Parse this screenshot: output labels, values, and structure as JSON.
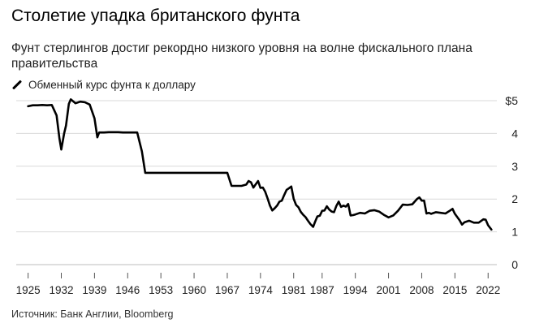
{
  "chart_data": {
    "type": "line",
    "title": "Столетие упадка британского фунта",
    "subtitle": "Фунт стерлингов достиг рекордно низкого уровня на волне фискального плана правительства",
    "legend": [
      "Обменный курс фунта к доллару"
    ],
    "source": "Источник: Банк Англии, Bloomberg",
    "xlabel": "",
    "ylabel": "",
    "ylim": [
      0,
      5
    ],
    "xlim": [
      1922.5,
      2023.5
    ],
    "yticks": [
      0,
      1,
      2,
      3,
      4,
      5
    ],
    "ytick_labels": [
      "0",
      "1",
      "2",
      "3",
      "4",
      "$5"
    ],
    "xticks": [
      1925,
      1932,
      1939,
      1946,
      1953,
      1960,
      1967,
      1974,
      1981,
      1987,
      1994,
      2001,
      2008,
      2015,
      2022
    ],
    "xtick_labels": [
      "1925",
      "1932",
      "1939",
      "1946",
      "1953",
      "1960",
      "1967",
      "1974",
      "1981",
      "1987",
      "1994",
      "2001",
      "2008",
      "2015",
      "2022"
    ],
    "grid": true,
    "series": [
      {
        "name": "Обменный курс фунта к доллару",
        "x": [
          1925.0,
          1926.0,
          1927.0,
          1928.0,
          1929.0,
          1930.0,
          1931.0,
          1931.6,
          1932.0,
          1932.6,
          1933.0,
          1933.6,
          1934.0,
          1935.0,
          1936.0,
          1937.0,
          1938.0,
          1939.0,
          1939.6,
          1940.0,
          1941.0,
          1942.0,
          1943.0,
          1944.0,
          1945.0,
          1946.0,
          1947.0,
          1948.0,
          1949.0,
          1949.7,
          1950.0,
          1955.0,
          1960.0,
          1965.0,
          1967.0,
          1967.9,
          1968.0,
          1969.0,
          1970.0,
          1971.0,
          1971.5,
          1972.0,
          1972.5,
          1973.0,
          1973.5,
          1974.0,
          1974.5,
          1975.0,
          1975.5,
          1976.0,
          1976.5,
          1977.0,
          1977.5,
          1978.0,
          1978.5,
          1979.0,
          1979.5,
          1980.0,
          1980.5,
          1981.0,
          1981.5,
          1982.0,
          1982.5,
          1983.0,
          1983.5,
          1984.0,
          1984.5,
          1985.1,
          1985.5,
          1986.0,
          1986.5,
          1987.0,
          1987.5,
          1988.0,
          1988.5,
          1989.0,
          1989.5,
          1990.0,
          1990.5,
          1991.0,
          1991.5,
          1992.0,
          1992.5,
          1993.0,
          1993.5,
          1994.0,
          1995.0,
          1996.0,
          1997.0,
          1998.0,
          1999.0,
          2000.0,
          2001.0,
          2002.0,
          2003.0,
          2004.0,
          2005.0,
          2006.0,
          2007.0,
          2007.5,
          2008.0,
          2008.5,
          2009.0,
          2009.5,
          2010.0,
          2011.0,
          2012.0,
          2013.0,
          2014.0,
          2014.5,
          2015.0,
          2016.0,
          2016.5,
          2017.0,
          2018.0,
          2019.0,
          2020.0,
          2021.0,
          2021.5,
          2022.0,
          2022.7
        ],
        "values": [
          4.83,
          4.86,
          4.86,
          4.87,
          4.86,
          4.87,
          4.55,
          3.85,
          3.51,
          4.0,
          4.24,
          4.9,
          5.04,
          4.92,
          4.97,
          4.95,
          4.88,
          4.46,
          3.88,
          4.03,
          4.03,
          4.04,
          4.04,
          4.04,
          4.03,
          4.03,
          4.03,
          4.03,
          3.45,
          2.8,
          2.8,
          2.8,
          2.8,
          2.8,
          2.8,
          2.4,
          2.4,
          2.4,
          2.4,
          2.44,
          2.55,
          2.51,
          2.35,
          2.45,
          2.55,
          2.34,
          2.35,
          2.22,
          2.02,
          1.8,
          1.65,
          1.72,
          1.8,
          1.92,
          1.95,
          2.12,
          2.28,
          2.33,
          2.38,
          2.01,
          1.82,
          1.75,
          1.61,
          1.52,
          1.45,
          1.34,
          1.24,
          1.15,
          1.3,
          1.47,
          1.49,
          1.64,
          1.65,
          1.78,
          1.68,
          1.62,
          1.6,
          1.79,
          1.92,
          1.76,
          1.8,
          1.77,
          1.85,
          1.5,
          1.51,
          1.53,
          1.58,
          1.56,
          1.64,
          1.66,
          1.62,
          1.52,
          1.44,
          1.5,
          1.64,
          1.83,
          1.82,
          1.84,
          2.0,
          2.05,
          1.95,
          1.95,
          1.56,
          1.58,
          1.55,
          1.6,
          1.58,
          1.56,
          1.65,
          1.7,
          1.55,
          1.35,
          1.22,
          1.29,
          1.34,
          1.28,
          1.28,
          1.38,
          1.37,
          1.2,
          1.07
        ]
      }
    ]
  }
}
